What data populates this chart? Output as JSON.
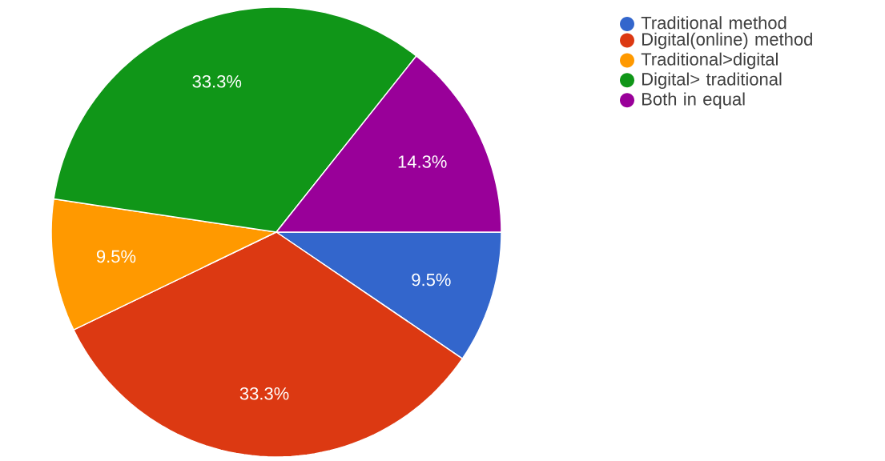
{
  "chart_data": {
    "type": "pie",
    "categories": [
      "Traditional method",
      "Digital(online) method",
      "Traditional>digital",
      "Digital> traditional",
      "Both in equal"
    ],
    "values": [
      9.5,
      33.3,
      9.5,
      33.3,
      14.3
    ],
    "colors": [
      "#3366cc",
      "#dc3912",
      "#ff9900",
      "#109618",
      "#990099"
    ],
    "value_labels": [
      "9.5%",
      "33.3%",
      "9.5%",
      "33.3%",
      "14.3%"
    ],
    "legend": "right"
  }
}
